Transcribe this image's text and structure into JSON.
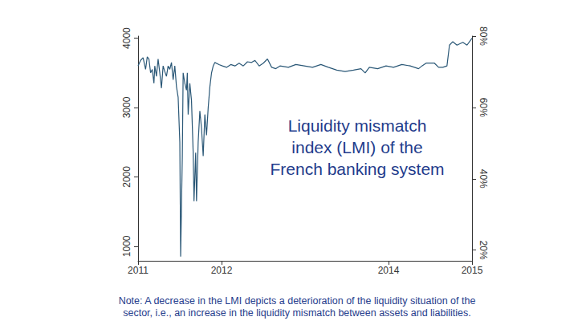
{
  "chart_data": {
    "type": "line",
    "title": "Liquidity mismatch\nindex (LMI) of the\nFrench banking system",
    "annotation": "Note: A decrease in the LMI depicts a deterioration of the liquidity situation of the\nsector, i.e., an increase in the liquidity mismatch between assets and liabilities.",
    "x": [
      2011.0,
      2011.03,
      2011.06,
      2011.09,
      2011.11,
      2011.13,
      2011.15,
      2011.17,
      2011.19,
      2011.2,
      2011.22,
      2011.24,
      2011.26,
      2011.28,
      2011.3,
      2011.32,
      2011.34,
      2011.36,
      2011.38,
      2011.4,
      2011.42,
      2011.44,
      2011.46,
      2011.48,
      2011.5,
      2011.51,
      2011.53,
      2011.54,
      2011.56,
      2011.58,
      2011.59,
      2011.6,
      2011.62,
      2011.64,
      2011.66,
      2011.67,
      2011.69,
      2011.7,
      2011.72,
      2011.74,
      2011.76,
      2011.78,
      2011.8,
      2011.82,
      2011.84,
      2011.86,
      2011.88,
      2011.9,
      2011.92,
      2011.97,
      2012.01,
      2012.06,
      2012.11,
      2012.16,
      2012.21,
      2012.26,
      2012.31,
      2012.36,
      2012.4,
      2012.45,
      2012.5,
      2012.55,
      2012.6,
      2012.65,
      2012.7,
      2012.8,
      2012.89,
      2012.99,
      2013.09,
      2013.19,
      2013.28,
      2013.38,
      2013.48,
      2013.58,
      2013.67,
      2013.72,
      2013.77,
      2013.87,
      2013.97,
      2014.06,
      2014.16,
      2014.26,
      2014.36,
      2014.4,
      2014.45,
      2014.55,
      2014.6,
      2014.65,
      2014.7,
      2014.73,
      2014.77,
      2014.82,
      2014.89,
      2014.94,
      2015.0
    ],
    "values": [
      3600,
      3680,
      3720,
      3550,
      3730,
      3700,
      3500,
      3550,
      3350,
      3600,
      3450,
      3700,
      3500,
      3280,
      3600,
      3520,
      3450,
      3600,
      3550,
      3650,
      3400,
      3600,
      3300,
      3150,
      2500,
      850,
      2300,
      3500,
      3350,
      3250,
      3500,
      2900,
      3350,
      3100,
      2350,
      1650,
      2350,
      1650,
      2500,
      2950,
      2700,
      2300,
      2900,
      2600,
      3000,
      3300,
      3500,
      3600,
      3650,
      3620,
      3600,
      3580,
      3620,
      3600,
      3640,
      3600,
      3660,
      3650,
      3680,
      3600,
      3640,
      3700,
      3580,
      3560,
      3600,
      3580,
      3620,
      3600,
      3580,
      3620,
      3580,
      3540,
      3520,
      3540,
      3560,
      3500,
      3580,
      3560,
      3600,
      3580,
      3620,
      3600,
      3560,
      3600,
      3640,
      3640,
      3580,
      3580,
      3600,
      3900,
      3950,
      3900,
      3940,
      3900,
      4000
    ],
    "color": "#2b5877",
    "xlim": [
      2011,
      2015
    ],
    "xticks": [
      2011,
      2012,
      2014,
      2015
    ],
    "ylim": [
      790,
      4030
    ],
    "yticks": [
      1000,
      2000,
      3000,
      4000
    ],
    "y2lim": [
      17,
      80
    ],
    "y2ticks": [
      {
        "value": 20,
        "label": "20%"
      },
      {
        "value": 40,
        "label": "40%"
      },
      {
        "value": 60,
        "label": "60%"
      },
      {
        "value": 80,
        "label": "80%"
      }
    ],
    "grid": false
  }
}
